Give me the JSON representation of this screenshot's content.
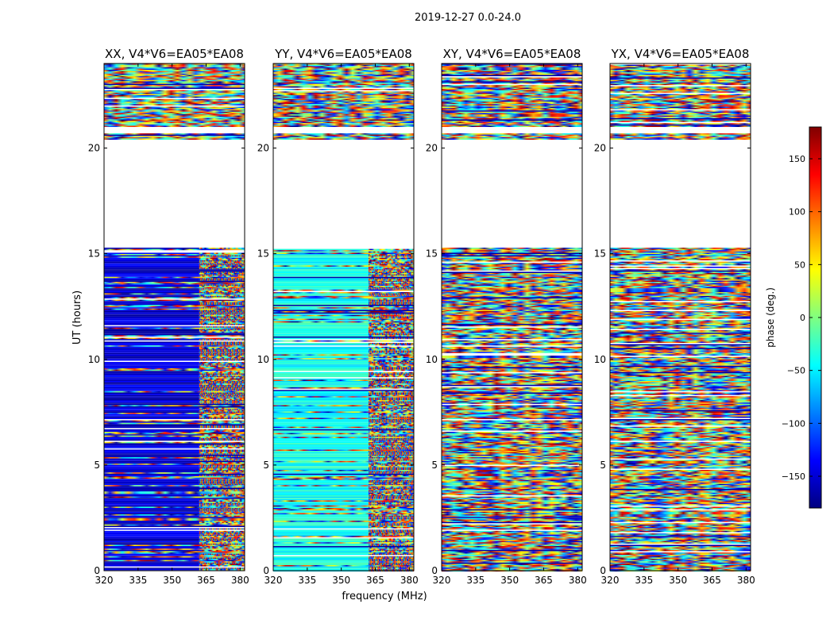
{
  "figure": {
    "suptitle": "2019-12-27 0.0-24.0",
    "xlabel": "frequency (MHz)",
    "ylabel": "UT (hours)"
  },
  "colorbar": {
    "label": "phase (deg.)",
    "range": [
      -180,
      180
    ],
    "ticks": [
      -150,
      -100,
      -50,
      0,
      50,
      100,
      150
    ],
    "tick_labels": [
      "−150",
      "−100",
      "−50",
      "0",
      "50",
      "100",
      "150"
    ],
    "colormap": [
      "#00007f",
      "#0000ff",
      "#007fff",
      "#00ffff",
      "#7fff7f",
      "#ffff00",
      "#ff7f00",
      "#ff0000",
      "#7f0000"
    ]
  },
  "chart_data": [
    {
      "type": "heatmap",
      "title": "XX, V4*V6=EA05*EA08",
      "xlabel": "frequency (MHz)",
      "ylabel": "UT (hours)",
      "xlim": [
        320,
        382
      ],
      "ylim": [
        0,
        24
      ],
      "xticks": [
        320,
        335,
        350,
        365,
        380
      ],
      "yticks": [
        0,
        5,
        10,
        15,
        20
      ],
      "data_mean_phase_deg": -150,
      "data_gaps_hours": [
        [
          15.3,
          20.4
        ],
        [
          20.7,
          21.0
        ]
      ]
    },
    {
      "type": "heatmap",
      "title": "YY, V4*V6=EA05*EA08",
      "xlabel": "frequency (MHz)",
      "ylabel": "UT (hours)",
      "xlim": [
        320,
        382
      ],
      "ylim": [
        0,
        24
      ],
      "xticks": [
        320,
        335,
        350,
        365,
        380
      ],
      "yticks": [
        0,
        5,
        10,
        15,
        20
      ],
      "data_mean_phase_deg": -40,
      "data_gaps_hours": [
        [
          15.3,
          20.4
        ],
        [
          20.7,
          21.0
        ]
      ]
    },
    {
      "type": "heatmap",
      "title": "XY, V4*V6=EA05*EA08",
      "xlabel": "frequency (MHz)",
      "ylabel": "UT (hours)",
      "xlim": [
        320,
        382
      ],
      "ylim": [
        0,
        24
      ],
      "xticks": [
        320,
        335,
        350,
        365,
        380
      ],
      "yticks": [
        0,
        5,
        10,
        15,
        20
      ],
      "data_mean_phase_deg": null,
      "data_gaps_hours": [
        [
          15.3,
          20.4
        ],
        [
          20.7,
          21.0
        ]
      ]
    },
    {
      "type": "heatmap",
      "title": "YX, V4*V6=EA05*EA08",
      "xlabel": "frequency (MHz)",
      "ylabel": "UT (hours)",
      "xlim": [
        320,
        382
      ],
      "ylim": [
        0,
        24
      ],
      "xticks": [
        320,
        335,
        350,
        365,
        380
      ],
      "yticks": [
        0,
        5,
        10,
        15,
        20
      ],
      "data_mean_phase_deg": null,
      "data_gaps_hours": [
        [
          15.3,
          20.4
        ],
        [
          20.7,
          21.0
        ]
      ]
    }
  ]
}
